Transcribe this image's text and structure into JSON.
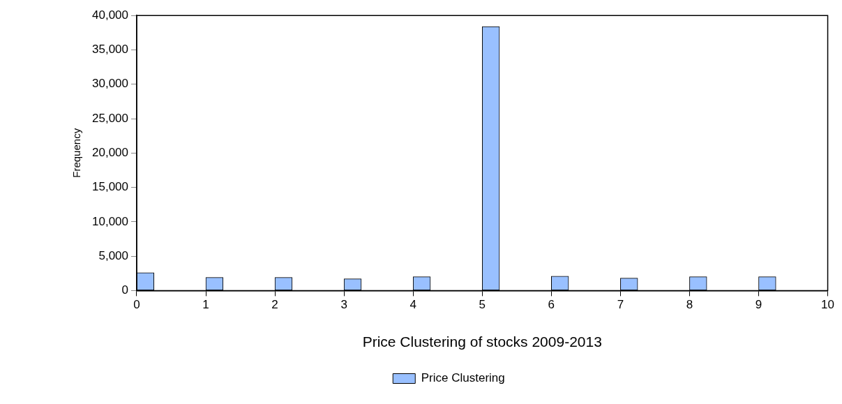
{
  "chart_data": {
    "type": "histogram",
    "xlabel": "Price Clustering of stocks 2009-2013",
    "ylabel": "Frequency",
    "bins": [
      0,
      0.25,
      0.5,
      0.75,
      1,
      1.25,
      1.5,
      1.75,
      2,
      2.25,
      2.5,
      2.75,
      3,
      3.25,
      3.5,
      3.75,
      4,
      4.25,
      4.5,
      4.75,
      5,
      5.25,
      5.5,
      5.75,
      6,
      6.25,
      6.5,
      6.75,
      7,
      7.25,
      7.5,
      7.75,
      8,
      8.25,
      8.5,
      8.75,
      9,
      9.25,
      9.5,
      9.75,
      10
    ],
    "series": [
      {
        "name": "Price Clustering",
        "color": "#99c0ff",
        "values": [
          2600,
          0,
          0,
          0,
          1900,
          0,
          0,
          0,
          1900,
          0,
          0,
          0,
          1700,
          0,
          0,
          0,
          2000,
          0,
          0,
          0,
          38400,
          0,
          0,
          0,
          2100,
          0,
          0,
          0,
          1800,
          0,
          0,
          0,
          2000,
          0,
          0,
          0,
          2000,
          0,
          0,
          0
        ]
      }
    ],
    "xlim": [
      0,
      10
    ],
    "xticks": [
      0,
      1,
      2,
      3,
      4,
      5,
      6,
      7,
      8,
      9,
      10
    ],
    "ylim": [
      0,
      40000
    ],
    "yticks": [
      0,
      {
        "value": 5000,
        "label": "5,000"
      },
      {
        "value": 10000,
        "label": "10,000"
      },
      {
        "value": 15000,
        "label": "15,000"
      },
      {
        "value": 20000,
        "label": "20,000"
      },
      {
        "value": 25000,
        "label": "25,000"
      },
      {
        "value": 30000,
        "label": "30,000"
      },
      {
        "value": 35000,
        "label": "35,000"
      },
      {
        "value": 40000,
        "label": "40,000"
      }
    ],
    "grid": false,
    "legend": "bottom"
  }
}
